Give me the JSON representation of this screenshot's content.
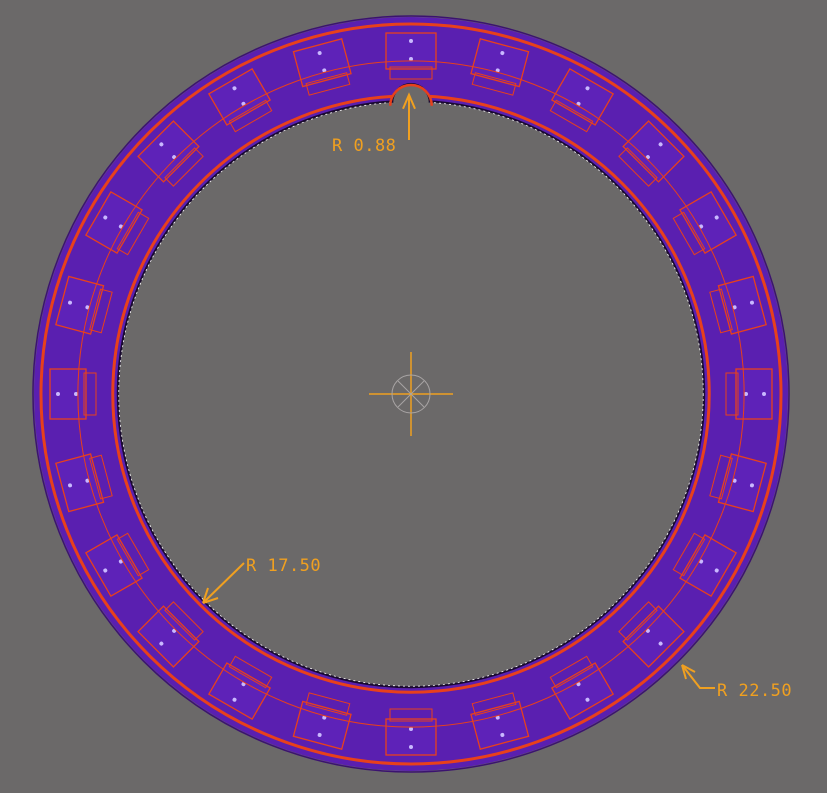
{
  "drawing": {
    "ring": {
      "outer_radius": 22.5,
      "inner_radius": 17.5,
      "notch_radius": 0.88,
      "segment_count": 24
    },
    "dimensions": [
      {
        "id": "notch",
        "label": "R 0.88"
      },
      {
        "id": "inner",
        "label": "R 17.50"
      },
      {
        "id": "outer",
        "label": "R 22.50"
      }
    ],
    "colors": {
      "background": "#6b6969",
      "ring_fill": "#5a1fb0",
      "outline": "#e8401c",
      "dimension": "#f0a020",
      "center_mark": "#f0a020",
      "pad_dot": "#c9b8ff"
    },
    "center_mark_icon": "crosshair-icon"
  }
}
